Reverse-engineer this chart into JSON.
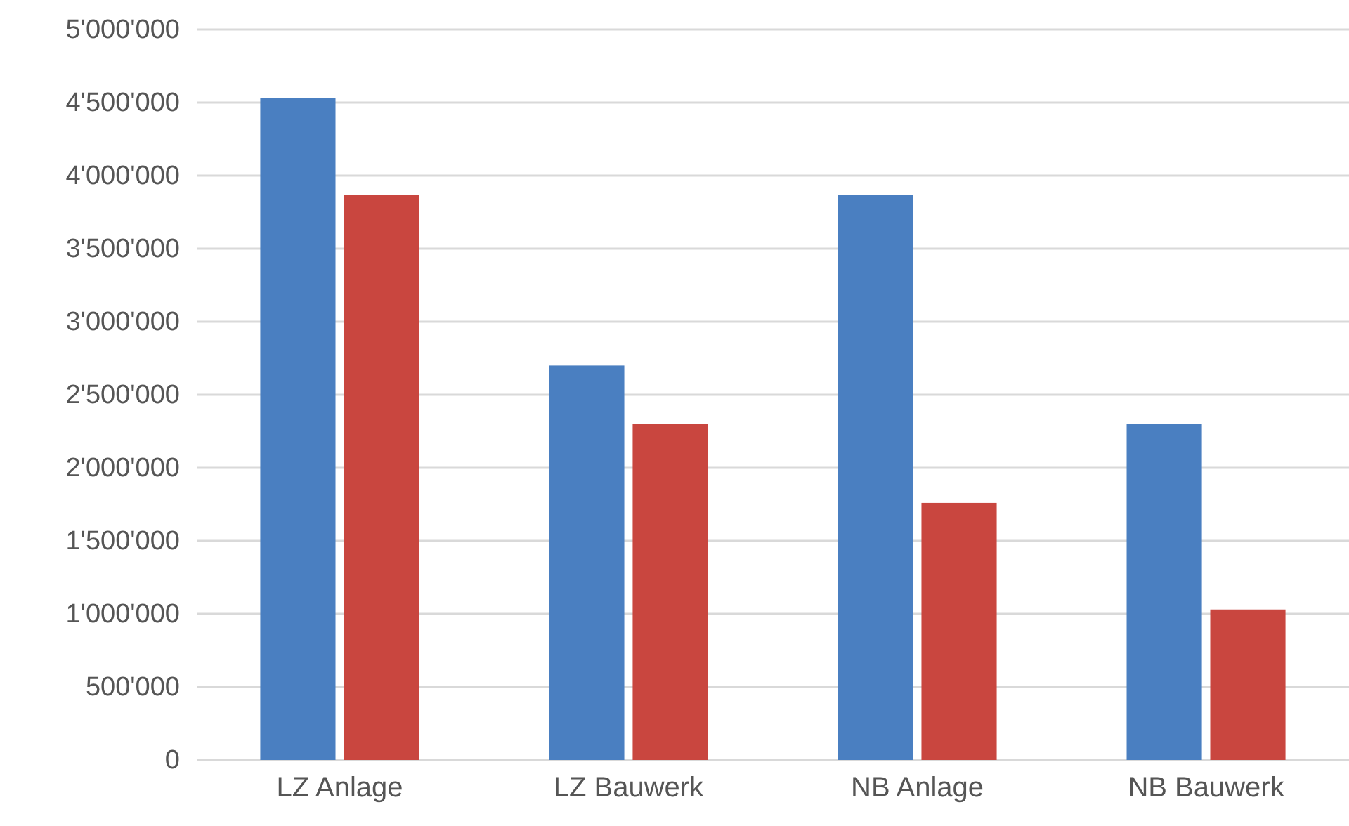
{
  "chart_data": {
    "type": "bar",
    "categories": [
      "LZ Anlage",
      "LZ Bauwerk",
      "NB Anlage",
      "NB Bauwerk"
    ],
    "series": [
      {
        "color": "#4a7fc1",
        "values": [
          4530000,
          2700000,
          3870000,
          2300000
        ]
      },
      {
        "color": "#c9463f",
        "values": [
          3870000,
          2300000,
          1760000,
          1030000
        ]
      }
    ],
    "ylim": [
      0,
      5000000
    ],
    "yticks": [
      {
        "value": 0,
        "label": "0"
      },
      {
        "value": 500000,
        "label": "500'000"
      },
      {
        "value": 1000000,
        "label": "1'000'000"
      },
      {
        "value": 1500000,
        "label": "1'500'000"
      },
      {
        "value": 2000000,
        "label": "2'000'000"
      },
      {
        "value": 2500000,
        "label": "2'500'000"
      },
      {
        "value": 3000000,
        "label": "3'000'000"
      },
      {
        "value": 3500000,
        "label": "3'500'000"
      },
      {
        "value": 4000000,
        "label": "4'000'000"
      },
      {
        "value": 4500000,
        "label": "4'500'000"
      },
      {
        "value": 5000000,
        "label": "5'000'000"
      }
    ],
    "grid": "y"
  }
}
